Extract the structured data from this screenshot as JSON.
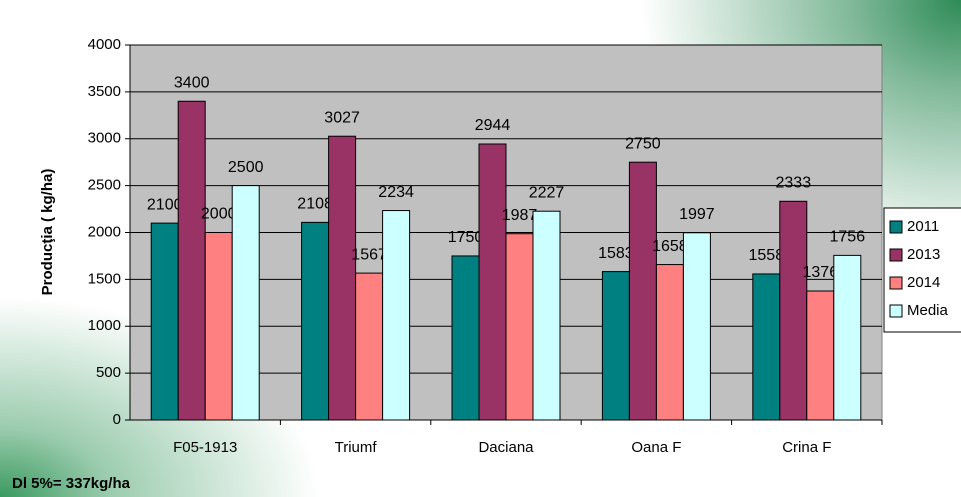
{
  "chart_data": {
    "type": "bar",
    "y_label": "Producţia ( kg/ha)",
    "annotation": "Dl 5%= 337kg/ha",
    "categories": [
      "F05-1913",
      "Triumf",
      "Daciana",
      "Oana F",
      "Crina F"
    ],
    "series": [
      {
        "name": "2011",
        "color": "#008080",
        "values": [
          2100,
          2108,
          1750,
          1583,
          1558
        ]
      },
      {
        "name": "2013",
        "color": "#993366",
        "values": [
          3400,
          3027,
          2944,
          2750,
          2333
        ]
      },
      {
        "name": "2014",
        "color": "#ff8080",
        "values": [
          2000,
          1567,
          1987,
          1658,
          1376
        ]
      },
      {
        "name": "Media",
        "color": "#ccffff",
        "values": [
          2500,
          2234,
          2227,
          1997,
          1756
        ]
      }
    ],
    "ylim": [
      0,
      4000
    ],
    "yticks": [
      0,
      500,
      1000,
      1500,
      2000,
      2500,
      3000,
      3500,
      4000
    ],
    "grid": true,
    "legend": "right",
    "plot_color": "#c0c0c0"
  }
}
